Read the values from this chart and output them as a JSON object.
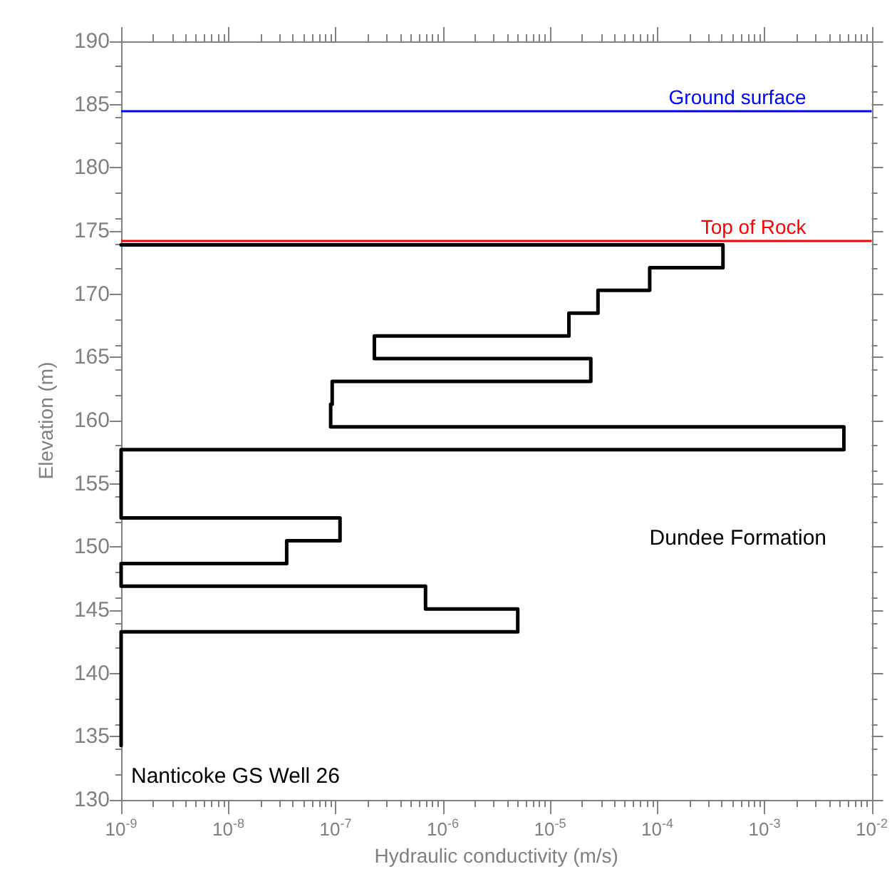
{
  "chart_data": {
    "type": "line",
    "xlabel": "Hydraulic conductivity (m/s)",
    "ylabel": "Elevation (m)",
    "log": "x",
    "annotations": [
      "Dundee Formation",
      "Nanticoke GS Well 26"
    ],
    "xlim": [
      1e-09,
      0.01
    ],
    "xticks": [
      {
        "value": 1e-09,
        "label": "10$^{-9}$"
      },
      {
        "value": 2e-09,
        "label": null
      },
      {
        "value": 3e-09,
        "label": null
      },
      {
        "value": 4e-09,
        "label": null
      },
      {
        "value": 5e-09,
        "label": null
      },
      {
        "value": 6e-09,
        "label": null
      },
      {
        "value": 7e-09,
        "label": null
      },
      {
        "value": 8e-09,
        "label": null
      },
      {
        "value": 9e-09,
        "label": null
      },
      {
        "value": 1e-08,
        "label": "10$^{-8}$"
      },
      {
        "value": 2e-08,
        "label": null
      },
      {
        "value": 3e-08,
        "label": null
      },
      {
        "value": 4e-08,
        "label": null
      },
      {
        "value": 5e-08,
        "label": null
      },
      {
        "value": 6e-08,
        "label": null
      },
      {
        "value": 7e-08,
        "label": null
      },
      {
        "value": 8e-08,
        "label": null
      },
      {
        "value": 9e-08,
        "label": null
      },
      {
        "value": 1e-07,
        "label": "10$^{-7}$"
      },
      {
        "value": 2e-07,
        "label": null
      },
      {
        "value": 3e-07,
        "label": null
      },
      {
        "value": 4e-07,
        "label": null
      },
      {
        "value": 5e-07,
        "label": null
      },
      {
        "value": 6e-07,
        "label": null
      },
      {
        "value": 7e-07,
        "label": null
      },
      {
        "value": 8e-07,
        "label": null
      },
      {
        "value": 9e-07,
        "label": null
      },
      {
        "value": 1e-06,
        "label": "10$^{-6}$"
      },
      {
        "value": 2e-06,
        "label": null
      },
      {
        "value": 3e-06,
        "label": null
      },
      {
        "value": 4e-06,
        "label": null
      },
      {
        "value": 5e-06,
        "label": null
      },
      {
        "value": 6e-06,
        "label": null
      },
      {
        "value": 7e-06,
        "label": null
      },
      {
        "value": 8e-06,
        "label": null
      },
      {
        "value": 9e-06,
        "label": null
      },
      {
        "value": 1e-05,
        "label": "10$^{-5}$"
      },
      {
        "value": 2e-05,
        "label": null
      },
      {
        "value": 3e-05,
        "label": null
      },
      {
        "value": 4e-05,
        "label": null
      },
      {
        "value": 5e-05,
        "label": null
      },
      {
        "value": 6e-05,
        "label": null
      },
      {
        "value": 7e-05,
        "label": null
      },
      {
        "value": 8e-05,
        "label": null
      },
      {
        "value": 9e-05,
        "label": null
      },
      {
        "value": 0.0001,
        "label": "10$^{-4}$"
      },
      {
        "value": 0.0002,
        "label": null
      },
      {
        "value": 0.0003,
        "label": null
      },
      {
        "value": 0.0004,
        "label": null
      },
      {
        "value": 0.0005,
        "label": null
      },
      {
        "value": 0.0006,
        "label": null
      },
      {
        "value": 0.0007,
        "label": null
      },
      {
        "value": 0.0008,
        "label": null
      },
      {
        "value": 0.0009,
        "label": null
      },
      {
        "value": 0.001,
        "label": "10$^{-3}$"
      },
      {
        "value": 0.002,
        "label": null
      },
      {
        "value": 0.003,
        "label": null
      },
      {
        "value": 0.004,
        "label": null
      },
      {
        "value": 0.005,
        "label": null
      },
      {
        "value": 0.006,
        "label": null
      },
      {
        "value": 0.007,
        "label": null
      },
      {
        "value": 0.008,
        "label": null
      },
      {
        "value": 0.009,
        "label": null
      },
      {
        "value": 0.01,
        "label": "10$^{-2}$"
      }
    ],
    "ylim": [
      130,
      190
    ],
    "yticks": [
      130,
      135,
      140,
      145,
      150,
      155,
      160,
      165,
      170,
      175,
      180,
      185,
      190
    ],
    "grid": false,
    "marker": "none",
    "line_style": "solid",
    "ref_lines": [
      {
        "axis": "y",
        "value": 184.5,
        "label": "Ground surface",
        "color": "#0000ff"
      },
      {
        "axis": "y",
        "value": 174.2,
        "label": "Top of Rock",
        "color": "#ff0000"
      }
    ],
    "series": [
      {
        "color": "#000000",
        "x": [
          1e-09,
          0.00041,
          0.00041,
          8.5e-05,
          8.5e-05,
          2.8e-05,
          2.8e-05,
          1.5e-05,
          1.5e-05,
          2.3e-07,
          2.3e-07,
          2.4e-05,
          2.4e-05,
          9.3e-08,
          9.3e-08,
          9e-08,
          9e-08,
          0.0055,
          0.0055,
          1e-09,
          1e-09,
          1.1e-07,
          1.1e-07,
          3.5e-08,
          3.5e-08,
          1e-09,
          1e-09,
          6.9e-07,
          6.9e-07,
          5e-06,
          5e-06,
          1e-09,
          1e-09
        ],
        "values": [
          173.9,
          173.9,
          172.1,
          172.1,
          170.3,
          170.3,
          168.5,
          168.5,
          166.7,
          166.7,
          164.9,
          164.9,
          163.1,
          163.1,
          161.3,
          161.3,
          159.5,
          159.5,
          157.7,
          157.7,
          152.3,
          152.3,
          150.5,
          150.5,
          148.7,
          148.7,
          146.9,
          146.9,
          145.1,
          145.1,
          143.3,
          143.3,
          134.3
        ]
      }
    ]
  }
}
